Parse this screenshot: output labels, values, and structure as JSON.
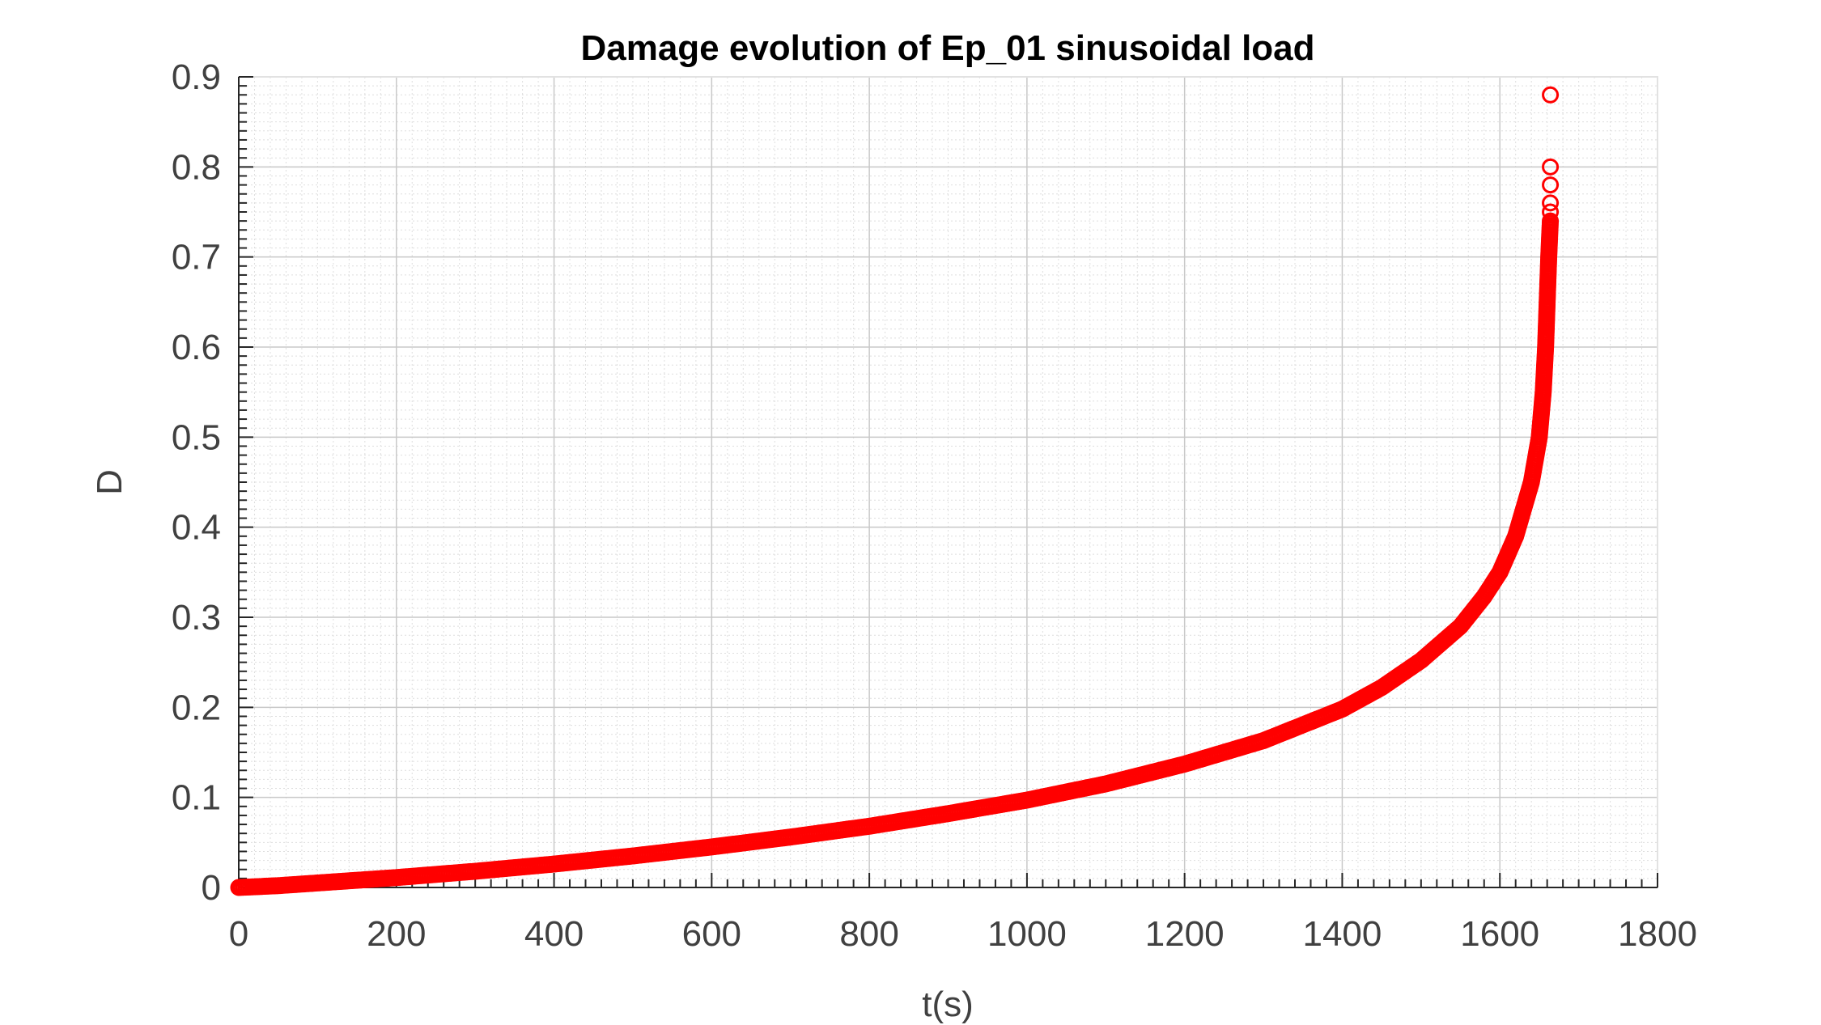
{
  "chart_data": {
    "type": "scatter",
    "title": "Damage evolution of Ep_01 sinusoidal load",
    "xlabel": "t(s)",
    "ylabel": "D",
    "xlim": [
      0,
      1800
    ],
    "ylim": [
      0,
      0.9
    ],
    "xticks": [
      "0",
      "200",
      "400",
      "600",
      "800",
      "1000",
      "1200",
      "1400",
      "1600",
      "1800"
    ],
    "yticks": [
      "0",
      "0.1",
      "0.2",
      "0.3",
      "0.4",
      "0.5",
      "0.6",
      "0.7",
      "0.8",
      "0.9"
    ],
    "grid": true,
    "minor_grid": true,
    "marker": "circle",
    "marker_color": "#ff0000",
    "series": [
      {
        "x": [
          0,
          50,
          100,
          150,
          200,
          300,
          400,
          500,
          600,
          700,
          800,
          900,
          1000,
          1100,
          1200,
          1300,
          1400,
          1450,
          1500,
          1550,
          1580,
          1600,
          1620,
          1640,
          1650,
          1655,
          1658,
          1660,
          1662,
          1663,
          1664,
          1664,
          1664,
          1664,
          1664,
          1664
        ],
        "y": [
          0,
          0.002,
          0.005,
          0.008,
          0.011,
          0.018,
          0.026,
          0.035,
          0.045,
          0.056,
          0.068,
          0.082,
          0.097,
          0.115,
          0.137,
          0.163,
          0.198,
          0.222,
          0.252,
          0.29,
          0.323,
          0.35,
          0.39,
          0.45,
          0.5,
          0.55,
          0.6,
          0.65,
          0.7,
          0.72,
          0.74,
          0.75,
          0.76,
          0.78,
          0.8,
          0.88
        ]
      }
    ]
  }
}
